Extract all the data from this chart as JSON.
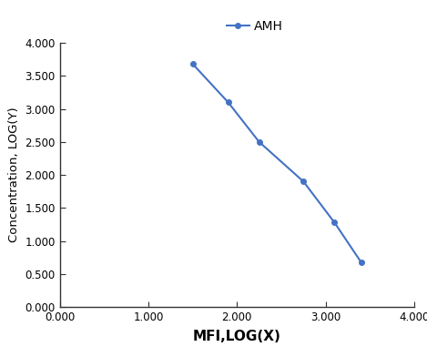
{
  "x": [
    1.5,
    1.9,
    2.25,
    2.75,
    3.1,
    3.4
  ],
  "y": [
    3.68,
    3.1,
    2.5,
    1.9,
    1.28,
    0.68
  ],
  "line_color": "#4472C4",
  "marker": "o",
  "marker_size": 4,
  "line_width": 1.5,
  "legend_label": "AMH",
  "xlabel": "MFI,LOG(X)",
  "ylabel": "Concentration, LOG(Y)",
  "xlim": [
    0.0,
    4.0
  ],
  "ylim": [
    0.0,
    4.0
  ],
  "xticks": [
    0.0,
    1.0,
    2.0,
    3.0,
    4.0
  ],
  "yticks": [
    0.0,
    0.5,
    1.0,
    1.5,
    2.0,
    2.5,
    3.0,
    3.5,
    4.0
  ],
  "xlabel_fontsize": 11,
  "ylabel_fontsize": 9.5,
  "legend_fontsize": 10,
  "tick_fontsize": 8.5,
  "spine_color": "#333333",
  "background_color": "#ffffff"
}
